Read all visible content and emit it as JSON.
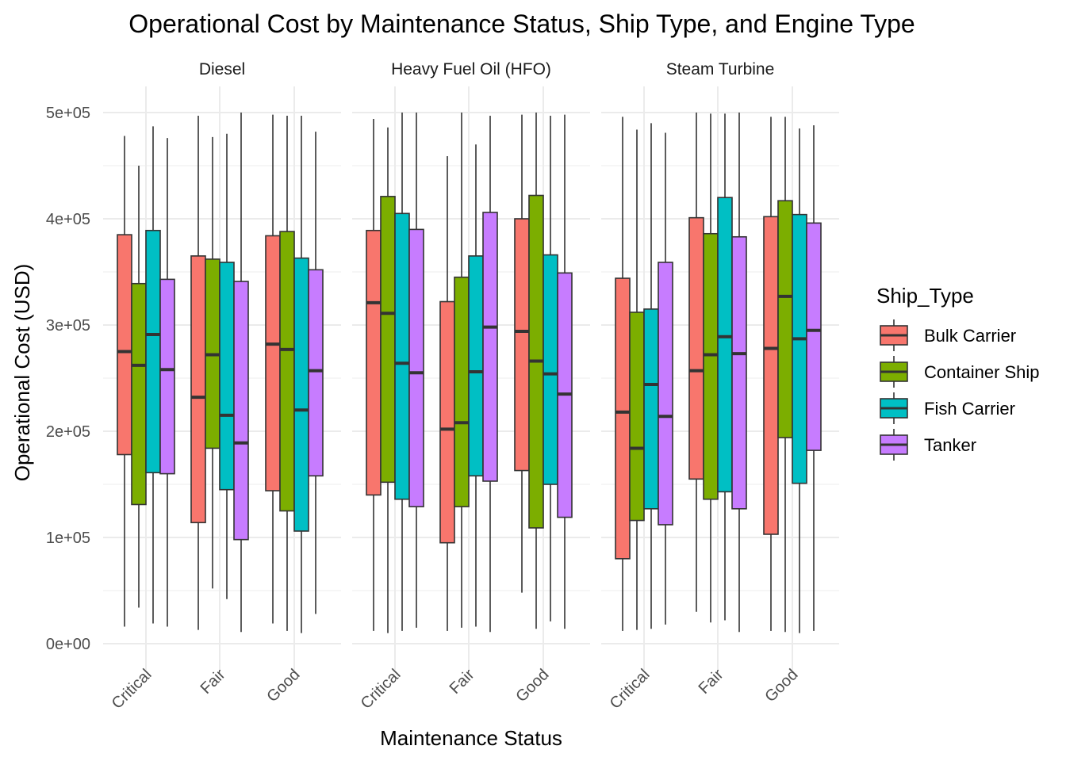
{
  "chart_data": {
    "type": "boxplot",
    "title": "Operational Cost by Maintenance Status, Ship Type, and Engine Type",
    "xlabel": "Maintenance Status",
    "ylabel": "Operational Cost (USD)",
    "ylim": [
      0,
      500000
    ],
    "y_ticks": [
      0,
      100000,
      200000,
      300000,
      400000,
      500000
    ],
    "y_tick_labels": [
      "0e+00",
      "1e+05",
      "2e+05",
      "3e+05",
      "4e+05",
      "5e+05"
    ],
    "categories": [
      "Critical",
      "Fair",
      "Good"
    ],
    "grid": true,
    "legend": {
      "title": "Ship_Type",
      "position": "right",
      "entries": [
        {
          "name": "Bulk Carrier",
          "color": "#F8766D"
        },
        {
          "name": "Container Ship",
          "color": "#7CAE00"
        },
        {
          "name": "Fish Carrier",
          "color": "#00BFC4"
        },
        {
          "name": "Tanker",
          "color": "#C77CFF"
        }
      ]
    },
    "facets": [
      {
        "name": "Diesel",
        "groups": {
          "Critical": [
            {
              "series": "Bulk Carrier",
              "min": 16000,
              "q1": 178000,
              "median": 275000,
              "q3": 385000,
              "max": 478000
            },
            {
              "series": "Container Ship",
              "min": 34000,
              "q1": 131000,
              "median": 262000,
              "q3": 339000,
              "max": 450000
            },
            {
              "series": "Fish Carrier",
              "min": 19000,
              "q1": 161000,
              "median": 291000,
              "q3": 389000,
              "max": 487000
            },
            {
              "series": "Tanker",
              "min": 16000,
              "q1": 160000,
              "median": 258000,
              "q3": 343000,
              "max": 476000
            }
          ],
          "Fair": [
            {
              "series": "Bulk Carrier",
              "min": 13000,
              "q1": 114000,
              "median": 232000,
              "q3": 365000,
              "max": 497000
            },
            {
              "series": "Container Ship",
              "min": 52000,
              "q1": 184000,
              "median": 272000,
              "q3": 362000,
              "max": 477000
            },
            {
              "series": "Fish Carrier",
              "min": 42000,
              "q1": 145000,
              "median": 215000,
              "q3": 359000,
              "max": 480000
            },
            {
              "series": "Tanker",
              "min": 11000,
              "q1": 98000,
              "median": 189000,
              "q3": 341000,
              "max": 500000
            }
          ],
          "Good": [
            {
              "series": "Bulk Carrier",
              "min": 19000,
              "q1": 144000,
              "median": 282000,
              "q3": 384000,
              "max": 498000
            },
            {
              "series": "Container Ship",
              "min": 12000,
              "q1": 125000,
              "median": 277000,
              "q3": 388000,
              "max": 497000
            },
            {
              "series": "Fish Carrier",
              "min": 10000,
              "q1": 106000,
              "median": 220000,
              "q3": 363000,
              "max": 497000
            },
            {
              "series": "Tanker",
              "min": 28000,
              "q1": 158000,
              "median": 257000,
              "q3": 352000,
              "max": 482000
            }
          ]
        }
      },
      {
        "name": "Heavy Fuel Oil (HFO)",
        "groups": {
          "Critical": [
            {
              "series": "Bulk Carrier",
              "min": 12000,
              "q1": 140000,
              "median": 321000,
              "q3": 389000,
              "max": 494000
            },
            {
              "series": "Container Ship",
              "min": 10000,
              "q1": 152000,
              "median": 311000,
              "q3": 421000,
              "max": 486000
            },
            {
              "series": "Fish Carrier",
              "min": 12000,
              "q1": 136000,
              "median": 264000,
              "q3": 405000,
              "max": 500000
            },
            {
              "series": "Tanker",
              "min": 15000,
              "q1": 129000,
              "median": 255000,
              "q3": 390000,
              "max": 500000
            }
          ],
          "Fair": [
            {
              "series": "Bulk Carrier",
              "min": 12000,
              "q1": 95000,
              "median": 202000,
              "q3": 322000,
              "max": 459000
            },
            {
              "series": "Container Ship",
              "min": 15000,
              "q1": 129000,
              "median": 208000,
              "q3": 345000,
              "max": 500000
            },
            {
              "series": "Fish Carrier",
              "min": 16000,
              "q1": 158000,
              "median": 256000,
              "q3": 365000,
              "max": 470000
            },
            {
              "series": "Tanker",
              "min": 11000,
              "q1": 153000,
              "median": 298000,
              "q3": 406000,
              "max": 497000
            }
          ],
          "Good": [
            {
              "series": "Bulk Carrier",
              "min": 48000,
              "q1": 163000,
              "median": 294000,
              "q3": 400000,
              "max": 498000
            },
            {
              "series": "Container Ship",
              "min": 14000,
              "q1": 109000,
              "median": 266000,
              "q3": 422000,
              "max": 500000
            },
            {
              "series": "Fish Carrier",
              "min": 21000,
              "q1": 150000,
              "median": 254000,
              "q3": 366000,
              "max": 497000
            },
            {
              "series": "Tanker",
              "min": 14000,
              "q1": 119000,
              "median": 235000,
              "q3": 349000,
              "max": 498000
            }
          ]
        }
      },
      {
        "name": "Steam Turbine",
        "groups": {
          "Critical": [
            {
              "series": "Bulk Carrier",
              "min": 12000,
              "q1": 80000,
              "median": 218000,
              "q3": 344000,
              "max": 496000
            },
            {
              "series": "Container Ship",
              "min": 13000,
              "q1": 116000,
              "median": 184000,
              "q3": 312000,
              "max": 484000
            },
            {
              "series": "Fish Carrier",
              "min": 14000,
              "q1": 127000,
              "median": 244000,
              "q3": 315000,
              "max": 490000
            },
            {
              "series": "Tanker",
              "min": 18000,
              "q1": 112000,
              "median": 214000,
              "q3": 359000,
              "max": 481000
            }
          ],
          "Fair": [
            {
              "series": "Bulk Carrier",
              "min": 30000,
              "q1": 155000,
              "median": 257000,
              "q3": 401000,
              "max": 500000
            },
            {
              "series": "Container Ship",
              "min": 20000,
              "q1": 136000,
              "median": 272000,
              "q3": 386000,
              "max": 499000
            },
            {
              "series": "Fish Carrier",
              "min": 22000,
              "q1": 143000,
              "median": 289000,
              "q3": 420000,
              "max": 499000
            },
            {
              "series": "Tanker",
              "min": 11000,
              "q1": 127000,
              "median": 273000,
              "q3": 383000,
              "max": 500000
            }
          ],
          "Good": [
            {
              "series": "Bulk Carrier",
              "min": 12000,
              "q1": 103000,
              "median": 278000,
              "q3": 402000,
              "max": 496000
            },
            {
              "series": "Container Ship",
              "min": 11000,
              "q1": 194000,
              "median": 327000,
              "q3": 417000,
              "max": 496000
            },
            {
              "series": "Fish Carrier",
              "min": 10000,
              "q1": 151000,
              "median": 287000,
              "q3": 404000,
              "max": 485000
            },
            {
              "series": "Tanker",
              "min": 12000,
              "q1": 182000,
              "median": 295000,
              "q3": 396000,
              "max": 488000
            }
          ]
        }
      }
    ]
  }
}
